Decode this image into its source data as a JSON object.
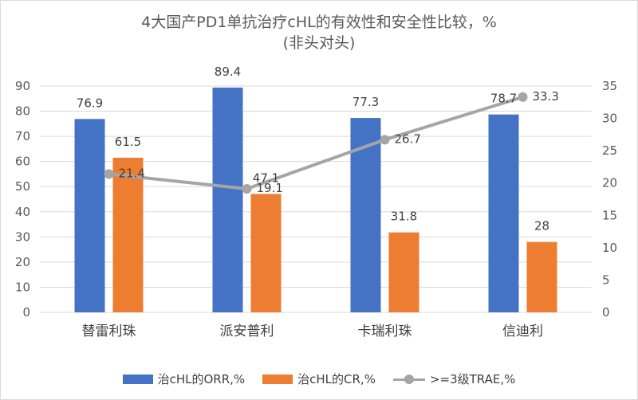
{
  "title_line1": "4大国产PD1单抗治疗cHL的有效性和安全性比较，%",
  "title_line2": "(非头对头)",
  "chart_data": {
    "type": "bar",
    "categories": [
      "替雷利珠",
      "派安普利",
      "卡瑞利珠",
      "信迪利"
    ],
    "series": [
      {
        "name": "治cHL的ORR,%",
        "type": "bar",
        "axis": "left",
        "values": [
          76.9,
          89.4,
          77.3,
          78.7
        ],
        "labels": [
          "76.9",
          "89.4",
          "77.3",
          "78.7"
        ],
        "color": "#4472c4"
      },
      {
        "name": "治cHL的CR,%",
        "type": "bar",
        "axis": "left",
        "values": [
          61.5,
          47.1,
          31.8,
          28
        ],
        "labels": [
          "61.5",
          "47.1",
          "31.8",
          "28"
        ],
        "color": "#ed7d31"
      },
      {
        "name": ">=3级TRAE,%",
        "type": "line",
        "axis": "right",
        "values": [
          21.4,
          19.1,
          26.7,
          33.3
        ],
        "labels": [
          "21.4",
          "19.1",
          "26.7",
          "33.3"
        ],
        "color": "#a5a5a5"
      }
    ],
    "y_left": {
      "min": 0,
      "max": 90,
      "step": 10,
      "ticks": [
        "0",
        "10",
        "20",
        "30",
        "40",
        "50",
        "60",
        "70",
        "80",
        "90"
      ]
    },
    "y_right": {
      "min": 0,
      "max": 35,
      "step": 5,
      "ticks": [
        "0",
        "5",
        "10",
        "15",
        "20",
        "25",
        "30",
        "35"
      ]
    },
    "grid": true,
    "legend": "bottom"
  }
}
